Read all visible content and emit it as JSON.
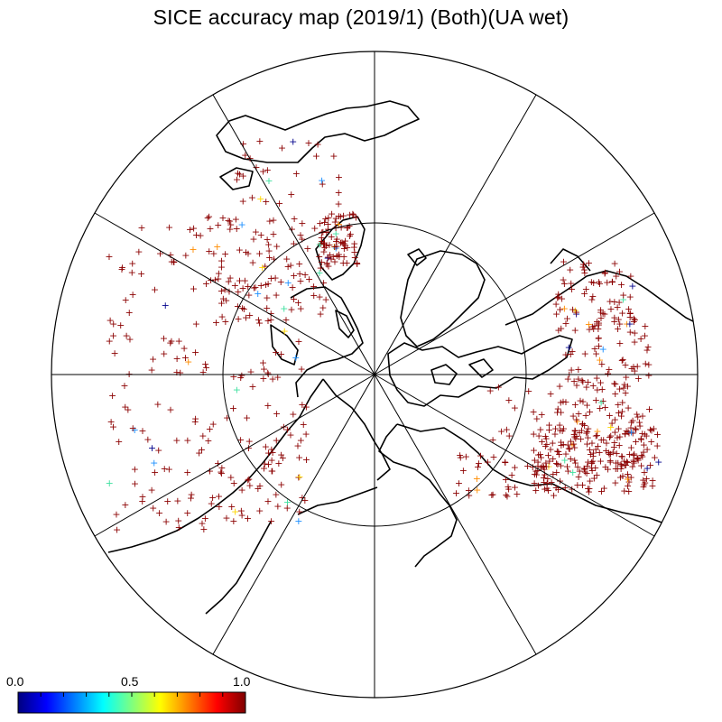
{
  "title": "SICE accuracy map (2019/1) (Both)(UA wet)",
  "projection": "north-polar-stereographic",
  "graticule": {
    "meridian_count": 12,
    "inner_circle": true
  },
  "colorbar": {
    "min_label": "0.0",
    "mid_label": "0.5",
    "max_label": "1.0",
    "colormap": "jet",
    "stops": [
      "#00007f",
      "#0000ff",
      "#007fff",
      "#00ffff",
      "#7fff7f",
      "#ffff00",
      "#ff7f00",
      "#ff0000",
      "#7f0000"
    ]
  },
  "marker": {
    "symbol": "+",
    "dominant_color": "#8b0000",
    "dominant_accuracy": 1.0,
    "minor_colors": [
      "#00008b",
      "#1e90ff",
      "#40e0a0",
      "#ffd700",
      "#ff8c00"
    ]
  },
  "colors": {
    "land_outline": "#000000",
    "graticule": "#000000",
    "background": "#ffffff"
  }
}
